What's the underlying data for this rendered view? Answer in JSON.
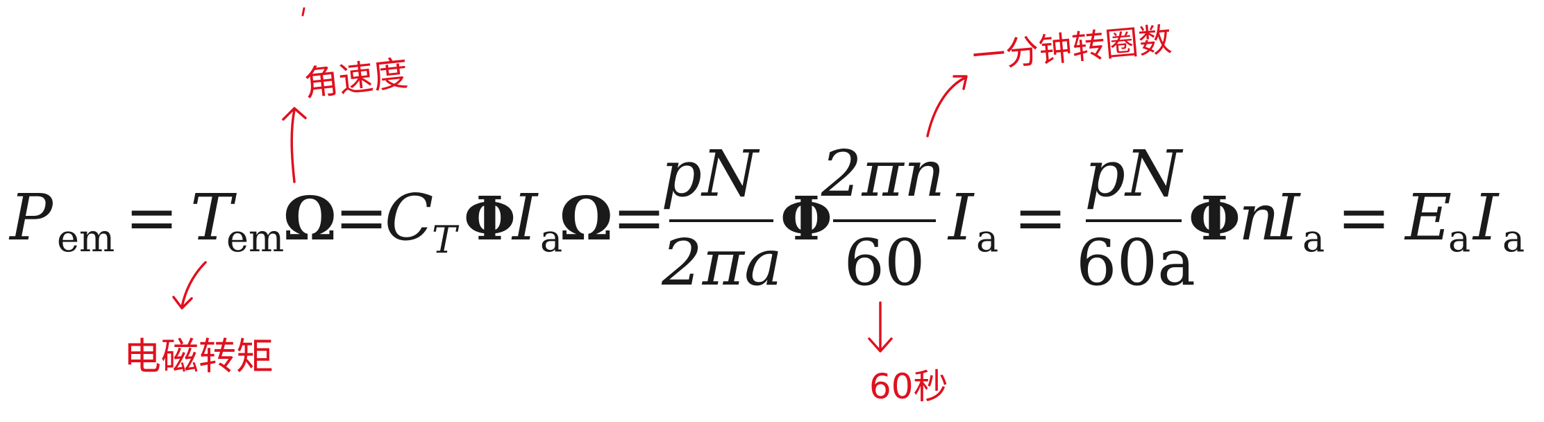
{
  "equation": {
    "p_em": {
      "symbol": "P",
      "sub": "em"
    },
    "eq1": "=",
    "t_em": {
      "symbol": "T",
      "sub": "em"
    },
    "omega1": "Ω",
    "eq2": "=",
    "ct": {
      "symbol": "C",
      "sub": "T"
    },
    "phi1": "Φ",
    "ia1": {
      "symbol": "I",
      "sub": "a"
    },
    "omega2": "Ω",
    "eq3": "=",
    "frac1": {
      "num": "pN",
      "den": "2πa"
    },
    "phi2": "Φ",
    "frac2": {
      "num": "2πn",
      "den": "60"
    },
    "ia2": {
      "symbol": "I",
      "sub": "a"
    },
    "eq4": "=",
    "frac3": {
      "num": "pN",
      "den": "60a"
    },
    "phi3": "Φ",
    "n": "n",
    "ia3": {
      "symbol": "I",
      "sub": "a"
    },
    "eq5": "=",
    "ea": {
      "symbol": "E",
      "sub": "a"
    },
    "ia4": {
      "symbol": "I",
      "sub": "a"
    }
  },
  "annotations": {
    "angular_speed": "角速度",
    "revolutions_per_minute": "一分钟转圈数",
    "em_torque": "电磁转矩",
    "sixty_seconds": "60秒"
  },
  "colors": {
    "ink": "#1a1a1a",
    "annotation": "#e0101e"
  }
}
